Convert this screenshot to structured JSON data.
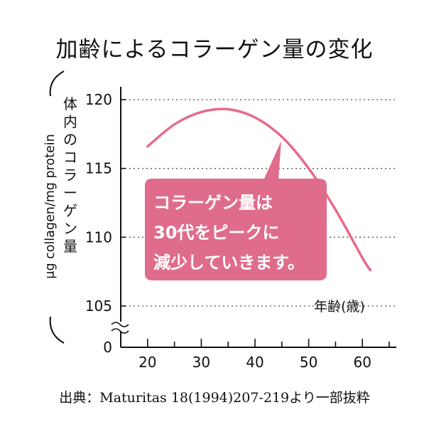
{
  "title": "加齢によるコラーゲン量の変化",
  "source": "出典：Maturitas 18(1994)207-219より一部抜粋",
  "colors": {
    "curve": "#e56b8a",
    "callout_fill": "#e06c8c",
    "axis": "#111111",
    "grid": "#555555"
  },
  "chart_data": {
    "type": "line",
    "title": "加齢によるコラーゲン量の変化",
    "xlabel": "年齢(歳)",
    "ylabel_jp": "体内のコラーゲン量",
    "ylabel_unit": "μg collagen/mg protein",
    "xlim": [
      15,
      65
    ],
    "ylim": [
      105,
      120
    ],
    "x_ticks": [
      20,
      30,
      40,
      50,
      60
    ],
    "y_ticks": [
      105,
      110,
      115,
      120
    ],
    "y_zero_label": "0",
    "axis_break": true,
    "grid": "horizontal-dotted",
    "series": [
      {
        "name": "コラーゲン量",
        "x": [
          20,
          25,
          30,
          35,
          40,
          45,
          50,
          55,
          60,
          61.5
        ],
        "y": [
          116.6,
          118.2,
          119.1,
          119.3,
          118.7,
          117.3,
          115.0,
          112.0,
          108.5,
          107.6
        ]
      }
    ],
    "annotation": {
      "lines": [
        "コラーゲン量は",
        "30代をピークに",
        "減少していきます。"
      ]
    }
  }
}
